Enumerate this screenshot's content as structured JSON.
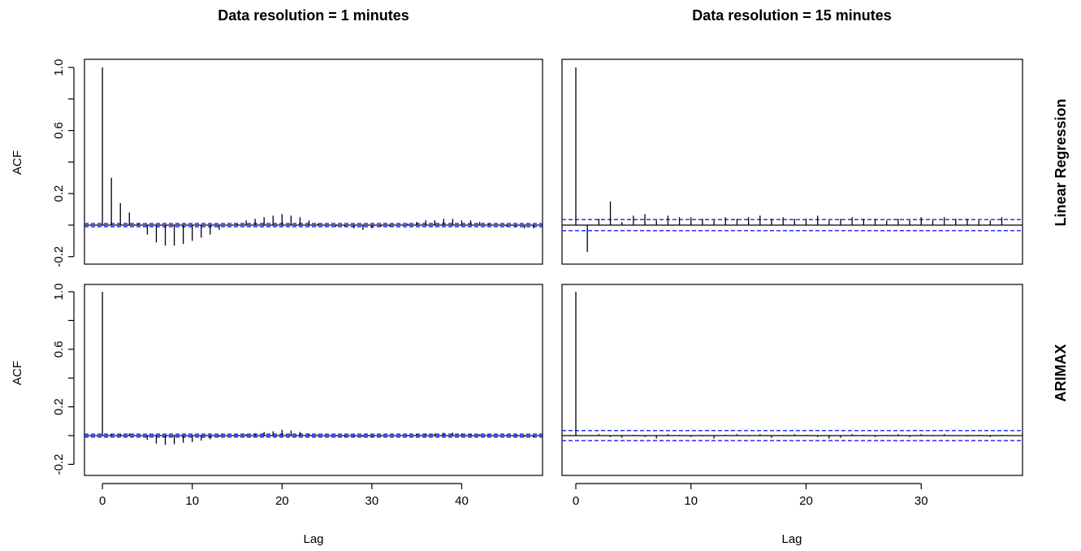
{
  "figure": {
    "column_titles": [
      "Data resolution = 1 minutes",
      "Data resolution = 15 minutes"
    ],
    "row_titles": [
      "Linear Regression",
      "ARIMAX"
    ],
    "ylabel": "ACF",
    "xlabel": "Lag"
  },
  "colors": {
    "spikes": "#000000",
    "confidence_band": "#1a1aff",
    "frame": "#000000"
  },
  "chart_data": [
    {
      "type": "bar",
      "panel": "1 minutes / Linear Regression",
      "title": "Data resolution = 1 minutes",
      "row": "Linear Regression",
      "xlabel": "",
      "ylabel": "ACF",
      "xlim": [
        -2,
        49
      ],
      "ylim": [
        -0.25,
        1.02
      ],
      "yticks": [
        "-0.2",
        "0.2",
        "0.6",
        "1.0"
      ],
      "xticks": [],
      "confidence_band": 0.01,
      "lags": [
        0,
        1,
        2,
        3,
        4,
        5,
        6,
        7,
        8,
        9,
        10,
        11,
        12,
        13,
        14,
        15,
        16,
        17,
        18,
        19,
        20,
        21,
        22,
        23,
        24,
        25,
        26,
        27,
        28,
        29,
        30,
        31,
        32,
        33,
        34,
        35,
        36,
        37,
        38,
        39,
        40,
        41,
        42,
        43,
        44,
        45,
        46,
        47,
        48
      ],
      "values": [
        1.0,
        0.3,
        0.14,
        0.08,
        0.01,
        -0.06,
        -0.11,
        -0.13,
        -0.13,
        -0.12,
        -0.1,
        -0.08,
        -0.06,
        -0.03,
        0.0,
        0.01,
        0.03,
        0.04,
        0.05,
        0.06,
        0.07,
        0.06,
        0.05,
        0.03,
        0.01,
        0.0,
        -0.01,
        -0.01,
        -0.02,
        -0.03,
        -0.02,
        -0.01,
        -0.01,
        0.0,
        0.01,
        0.02,
        0.03,
        0.03,
        0.04,
        0.04,
        0.03,
        0.03,
        0.02,
        0.01,
        0.0,
        -0.01,
        -0.01,
        -0.02,
        -0.02
      ]
    },
    {
      "type": "bar",
      "panel": "15 minutes / Linear Regression",
      "title": "Data resolution = 15 minutes",
      "row": "Linear Regression",
      "xlabel": "",
      "ylabel": "",
      "xlim": [
        -1.2,
        38.8
      ],
      "ylim": [
        -0.25,
        1.02
      ],
      "yticks": [],
      "xticks": [],
      "confidence_band": 0.035,
      "lags": [
        0,
        1,
        2,
        3,
        4,
        5,
        6,
        7,
        8,
        9,
        10,
        11,
        12,
        13,
        14,
        15,
        16,
        17,
        18,
        19,
        20,
        21,
        22,
        23,
        24,
        25,
        26,
        27,
        28,
        29,
        30,
        31,
        32,
        33,
        34,
        35,
        36,
        37
      ],
      "values": [
        1.0,
        -0.17,
        0.04,
        0.15,
        0.02,
        0.06,
        0.07,
        0.03,
        0.06,
        0.05,
        0.05,
        0.04,
        0.03,
        0.05,
        0.04,
        0.05,
        0.06,
        0.04,
        0.05,
        0.04,
        0.04,
        0.06,
        0.03,
        0.04,
        0.05,
        0.04,
        0.04,
        0.03,
        0.04,
        0.03,
        0.05,
        0.03,
        0.05,
        0.04,
        0.04,
        0.03,
        0.03,
        0.05
      ]
    },
    {
      "type": "bar",
      "panel": "1 minutes / ARIMAX",
      "title": "",
      "row": "ARIMAX",
      "xlabel": "Lag",
      "ylabel": "ACF",
      "xlim": [
        -2,
        49
      ],
      "ylim": [
        -0.25,
        1.02
      ],
      "yticks": [
        "-0.2",
        "0.2",
        "0.6",
        "1.0"
      ],
      "xticks": [
        "0",
        "10",
        "20",
        "30",
        "40"
      ],
      "confidence_band": 0.01,
      "lags": [
        0,
        1,
        2,
        3,
        4,
        5,
        6,
        7,
        8,
        9,
        10,
        11,
        12,
        13,
        14,
        15,
        16,
        17,
        18,
        19,
        20,
        21,
        22,
        23,
        24,
        25,
        26,
        27,
        28,
        29,
        30,
        31,
        32,
        33,
        34,
        35,
        36,
        37,
        38,
        39,
        40,
        41,
        42,
        43,
        44,
        45,
        46,
        47,
        48
      ],
      "values": [
        1.0,
        0.01,
        0.01,
        0.015,
        0.0,
        -0.03,
        -0.055,
        -0.065,
        -0.06,
        -0.05,
        -0.045,
        -0.035,
        -0.025,
        -0.01,
        0.0,
        0.005,
        0.01,
        0.015,
        0.025,
        0.03,
        0.04,
        0.035,
        0.025,
        0.015,
        0.005,
        0.0,
        -0.005,
        -0.01,
        -0.01,
        -0.01,
        -0.01,
        -0.005,
        0.0,
        0.0,
        0.005,
        0.01,
        0.015,
        0.015,
        0.02,
        0.02,
        0.015,
        0.01,
        0.01,
        0.005,
        0.0,
        -0.005,
        -0.005,
        -0.01,
        -0.01
      ]
    },
    {
      "type": "bar",
      "panel": "15 minutes / ARIMAX",
      "title": "",
      "row": "ARIMAX",
      "xlabel": "Lag",
      "ylabel": "",
      "xlim": [
        -1.2,
        38.8
      ],
      "ylim": [
        -0.25,
        1.02
      ],
      "yticks": [],
      "xticks": [
        "0",
        "10",
        "20",
        "30"
      ],
      "confidence_band": 0.035,
      "lags": [
        0,
        1,
        2,
        3,
        4,
        5,
        6,
        7,
        8,
        9,
        10,
        11,
        12,
        13,
        14,
        15,
        16,
        17,
        18,
        19,
        20,
        21,
        22,
        23,
        24,
        25,
        26,
        27,
        28,
        29,
        30,
        31,
        32,
        33,
        34,
        35,
        36,
        37
      ],
      "values": [
        1.0,
        0.0,
        0.01,
        -0.01,
        -0.015,
        0.005,
        -0.01,
        -0.02,
        0.01,
        0.005,
        -0.01,
        -0.005,
        -0.02,
        0.005,
        0.01,
        -0.005,
        0.01,
        -0.015,
        0.005,
        0.01,
        0.005,
        -0.01,
        -0.02,
        -0.015,
        0.01,
        0.005,
        -0.01,
        0.005,
        0.01,
        -0.01,
        0.01,
        -0.005,
        0.01,
        0.0,
        -0.005,
        0.005,
        -0.01,
        0.005
      ]
    }
  ]
}
